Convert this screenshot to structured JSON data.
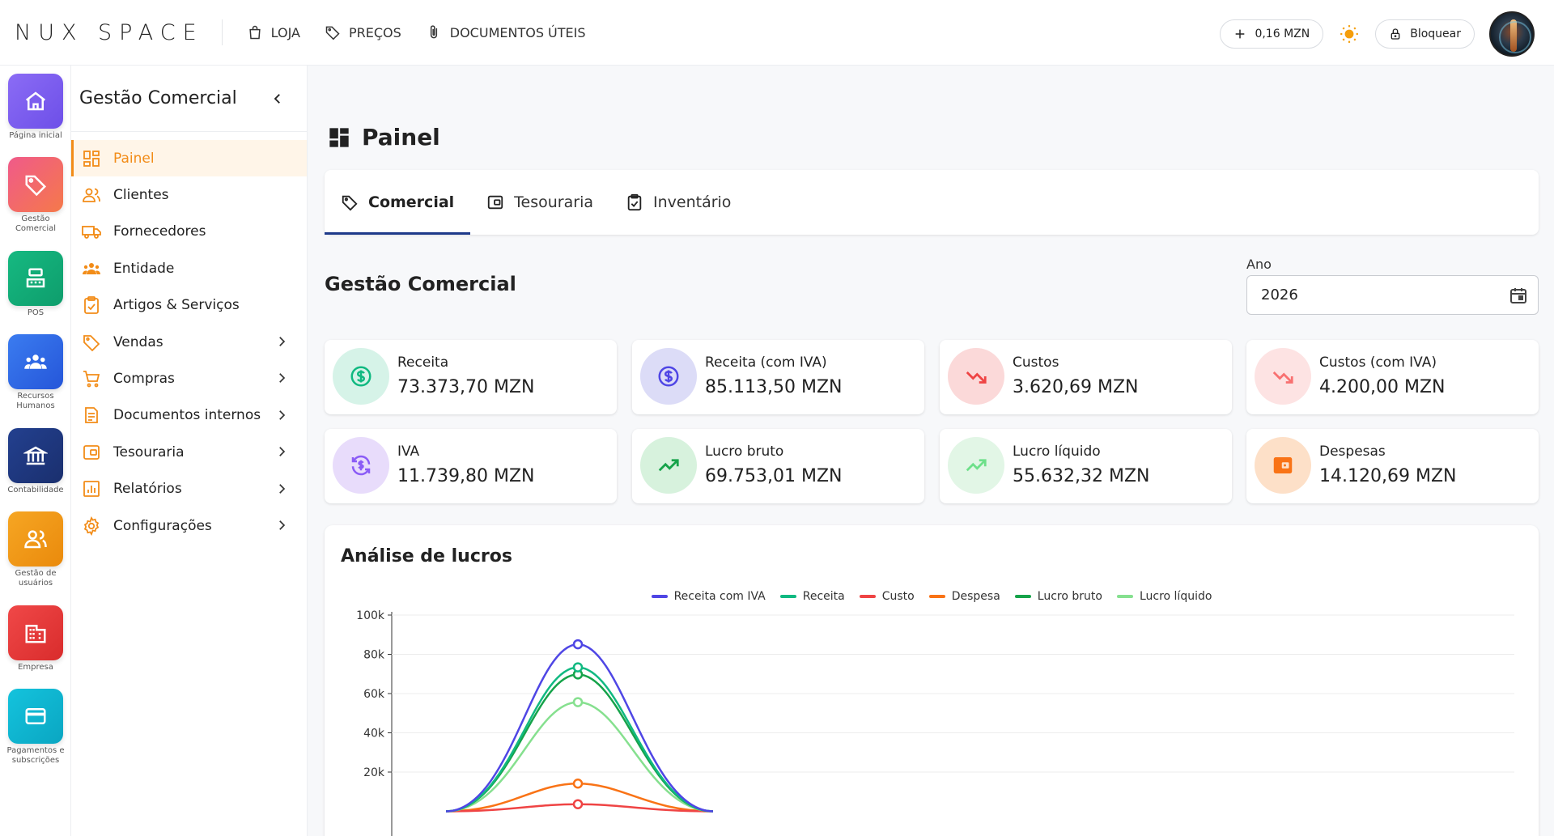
{
  "brand": {
    "logo": "NUX SPACE"
  },
  "topnav": [
    {
      "label": "LOJA",
      "icon": "shopping-bag-icon"
    },
    {
      "label": "PREÇOS",
      "icon": "price-tag-icon"
    },
    {
      "label": "DOCUMENTOS ÚTEIS",
      "icon": "paperclip-icon"
    }
  ],
  "topright": {
    "balance": "0,16 MZN",
    "lock_label": "Bloquear"
  },
  "rail": [
    {
      "label": "Página inicial",
      "color": "#7c5cf0",
      "icon": "home-icon"
    },
    {
      "label": "Gestão Comercial",
      "color": "#f06a6a",
      "icon": "tag-icon"
    },
    {
      "label": "POS",
      "color": "#10b981",
      "icon": "cash-register-icon"
    },
    {
      "label": "Recursos Humanos",
      "color": "#2563eb",
      "icon": "people-icon"
    },
    {
      "label": "Contabilidade",
      "color": "#1e3a8a",
      "icon": "bank-icon"
    },
    {
      "label": "Gestão de usuários",
      "color": "#f59e0b",
      "icon": "users-icon"
    },
    {
      "label": "Empresa",
      "color": "#ef4444",
      "icon": "building-icon"
    },
    {
      "label": "Pagamentos e subscrições",
      "color": "#06b6d4",
      "icon": "card-icon"
    }
  ],
  "sidebar": {
    "title": "Gestão Comercial",
    "items": [
      {
        "label": "Painel",
        "icon": "dashboard-icon",
        "active": true,
        "submenu": false
      },
      {
        "label": "Clientes",
        "icon": "clients-icon",
        "active": false,
        "submenu": false
      },
      {
        "label": "Fornecedores",
        "icon": "truck-icon",
        "active": false,
        "submenu": false
      },
      {
        "label": "Entidade",
        "icon": "group-icon",
        "active": false,
        "submenu": false
      },
      {
        "label": "Artigos & Serviços",
        "icon": "clipboard-check-icon",
        "active": false,
        "submenu": false
      },
      {
        "label": "Vendas",
        "icon": "tag-icon",
        "active": false,
        "submenu": true
      },
      {
        "label": "Compras",
        "icon": "cart-icon",
        "active": false,
        "submenu": true
      },
      {
        "label": "Documentos internos",
        "icon": "document-icon",
        "active": false,
        "submenu": true
      },
      {
        "label": "Tesouraria",
        "icon": "wallet-icon",
        "active": false,
        "submenu": true
      },
      {
        "label": "Relatórios",
        "icon": "bar-chart-icon",
        "active": false,
        "submenu": true
      },
      {
        "label": "Configurações",
        "icon": "gear-icon",
        "active": false,
        "submenu": true
      }
    ]
  },
  "main": {
    "page_title": "Painel",
    "tabs": [
      {
        "label": "Comercial",
        "icon": "tag-icon",
        "active": true
      },
      {
        "label": "Tesouraria",
        "icon": "wallet-icon",
        "active": false
      },
      {
        "label": "Inventário",
        "icon": "clipboard-check-icon",
        "active": false
      }
    ],
    "section_title": "Gestão Comercial",
    "year": {
      "label": "Ano",
      "value": "2026"
    },
    "kpis": [
      {
        "label": "Receita",
        "value": "73.373,70 MZN",
        "icon": "dollar-circle-icon",
        "bg": "#d6f3e8",
        "fg": "#10b981"
      },
      {
        "label": "Receita (com IVA)",
        "value": "85.113,50 MZN",
        "icon": "dollar-circle-icon",
        "bg": "#dcdcf7",
        "fg": "#4f46e5"
      },
      {
        "label": "Custos",
        "value": "3.620,69 MZN",
        "icon": "trend-down-icon",
        "bg": "#fbd9d9",
        "fg": "#ef4444"
      },
      {
        "label": "Custos (com IVA)",
        "value": "4.200,00 MZN",
        "icon": "trend-down-icon",
        "bg": "#fde3e3",
        "fg": "#f87171"
      },
      {
        "label": "IVA",
        "value": "11.739,80 MZN",
        "icon": "refresh-dollar-icon",
        "bg": "#e8dcfb",
        "fg": "#8b5cf6"
      },
      {
        "label": "Lucro bruto",
        "value": "69.753,01 MZN",
        "icon": "trend-up-icon",
        "bg": "#d7f2dd",
        "fg": "#16a34a"
      },
      {
        "label": "Lucro líquido",
        "value": "55.632,32 MZN",
        "icon": "trend-up-icon",
        "bg": "#e2f6e6",
        "fg": "#6ee08a"
      },
      {
        "label": "Despesas",
        "value": "14.120,69 MZN",
        "icon": "wallet-icon",
        "bg": "#fde0c8",
        "fg": "#f97316"
      }
    ]
  },
  "chart_data": {
    "type": "line",
    "title": "Análise de lucros",
    "ylim": [
      0,
      100000
    ],
    "yticks": [
      "20k",
      "40k",
      "60k",
      "80k",
      "100k"
    ],
    "grid": true,
    "legend_position": "top-center",
    "series": [
      {
        "name": "Receita com IVA",
        "color": "#4f46e5",
        "values": [
          0,
          85113.5,
          0
        ]
      },
      {
        "name": "Receita",
        "color": "#10b981",
        "values": [
          0,
          73373.7,
          0
        ]
      },
      {
        "name": "Custo",
        "color": "#ef4444",
        "values": [
          0,
          3620.69,
          0
        ]
      },
      {
        "name": "Despesa",
        "color": "#f97316",
        "values": [
          0,
          14120.69,
          0
        ]
      },
      {
        "name": "Lucro bruto",
        "color": "#16a34a",
        "values": [
          0,
          69753.01,
          0
        ]
      },
      {
        "name": "Lucro líquido",
        "color": "#86e08f",
        "values": [
          0,
          55632.32,
          0
        ]
      }
    ]
  }
}
